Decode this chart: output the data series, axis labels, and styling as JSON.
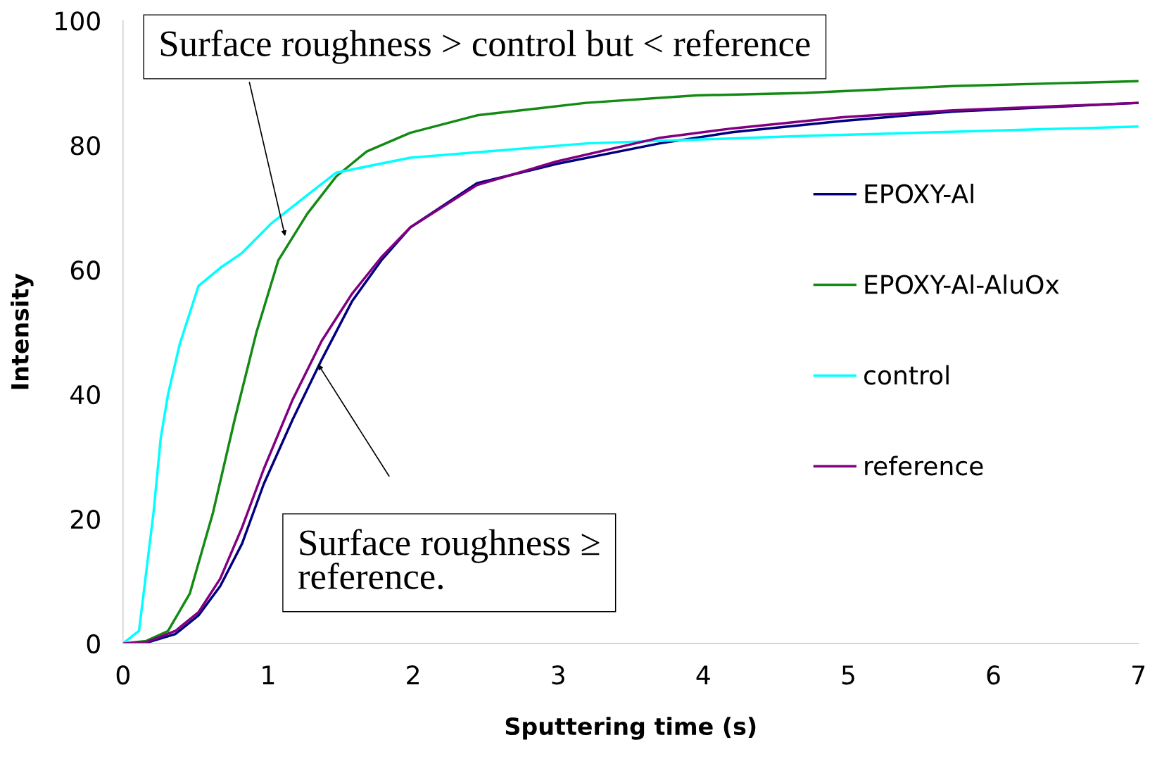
{
  "chart_data": {
    "type": "line",
    "xlabel": "Sputtering time (s)",
    "ylabel": "Intensity",
    "xlim": [
      0,
      7
    ],
    "xticks": [
      0,
      1,
      2,
      3,
      4,
      5,
      6,
      7
    ],
    "ylim": [
      0,
      100
    ],
    "yticks": [
      0,
      20,
      40,
      60,
      80,
      100
    ],
    "grid": false,
    "legend": "right",
    "marker": "none",
    "line_style": "solid",
    "series": [
      {
        "name": "EPOXY-Al",
        "color": "#000080",
        "x": [
          0,
          0.16,
          0.36,
          0.52,
          0.67,
          0.82,
          0.97,
          1.17,
          1.37,
          1.58,
          1.78,
          1.98,
          2.44,
          2.99,
          3.7,
          4.2,
          4.96,
          5.72,
          7
        ],
        "values": [
          0,
          0.1,
          1.5,
          4.5,
          9.2,
          16,
          25.6,
          36,
          45.6,
          55,
          61.5,
          66.8,
          73.9,
          77,
          80.3,
          82.1,
          83.9,
          85.4,
          86.8
        ]
      },
      {
        "name": "EPOXY-Al-AluOx",
        "color": "#138a13",
        "x": [
          0,
          0.16,
          0.31,
          0.46,
          0.62,
          0.77,
          0.92,
          1.07,
          1.27,
          1.47,
          1.68,
          1.98,
          2.44,
          3.19,
          3.95,
          4.7,
          5.72,
          7
        ],
        "values": [
          0,
          0.4,
          2,
          8,
          21,
          36,
          50,
          61.5,
          69,
          75,
          79,
          82,
          84.8,
          86.8,
          88,
          88.4,
          89.5,
          90.3
        ]
      },
      {
        "name": "control",
        "color": "#00ffff",
        "x": [
          0,
          0.11,
          0.21,
          0.26,
          0.31,
          0.39,
          0.52,
          0.67,
          0.82,
          1.02,
          1.27,
          1.47,
          1.98,
          3.2,
          4.7,
          7
        ],
        "values": [
          0,
          2,
          21,
          33,
          40,
          48,
          57.4,
          60.3,
          62.7,
          67.4,
          72,
          75.6,
          78,
          80.3,
          81.5,
          83
        ]
      },
      {
        "name": "reference",
        "color": "#800080",
        "x": [
          0,
          0.16,
          0.36,
          0.52,
          0.67,
          0.82,
          0.97,
          1.17,
          1.37,
          1.58,
          1.78,
          1.98,
          2.44,
          2.99,
          3.7,
          4.2,
          4.96,
          5.72,
          7
        ],
        "values": [
          0,
          0.2,
          2,
          5,
          10.4,
          18.6,
          28,
          39.2,
          48.6,
          56.2,
          62,
          66.8,
          73.6,
          77.4,
          81.2,
          82.7,
          84.5,
          85.6,
          86.8
        ]
      }
    ],
    "annotations": [
      "Surface roughness > control but < reference",
      "Surface roughness ≥\nreference."
    ]
  }
}
